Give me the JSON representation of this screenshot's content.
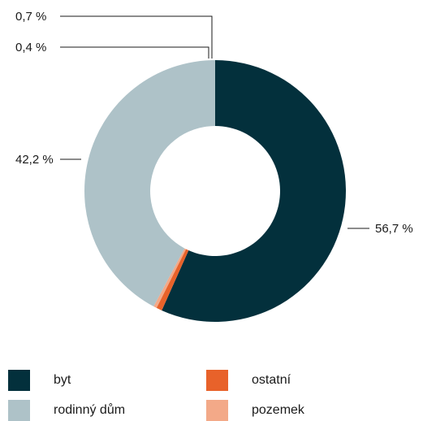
{
  "chart_data": {
    "type": "pie",
    "donut": true,
    "categories": [
      "byt",
      "ostatní",
      "pozemek",
      "rodinný dům"
    ],
    "values": [
      56.7,
      0.7,
      0.4,
      42.2
    ],
    "value_labels": [
      "56,7 %",
      "0,7 %",
      "0,4 %",
      "42,2 %"
    ],
    "colors": [
      "#03303c",
      "#e8622a",
      "#f3a988",
      "#aec2c8"
    ],
    "legend": {
      "position": "bottom",
      "items": [
        {
          "label": "byt",
          "color": "#03303c"
        },
        {
          "label": "ostatní",
          "color": "#e8622a"
        },
        {
          "label": "rodinný dům",
          "color": "#aec2c8"
        },
        {
          "label": "pozemek",
          "color": "#f3a988"
        }
      ]
    }
  }
}
